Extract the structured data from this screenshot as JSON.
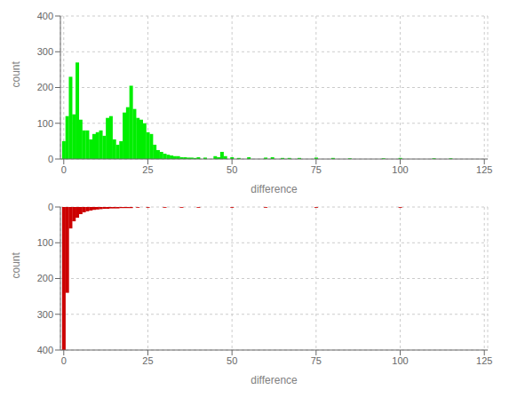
{
  "chart_data": [
    {
      "type": "bar",
      "xlabel": "difference",
      "ylabel": "count",
      "color": "#00EE00",
      "grid": true,
      "xlim": [
        -1,
        126
      ],
      "ylim": [
        0,
        400
      ],
      "xticks": [
        0,
        25,
        50,
        75,
        100,
        125
      ],
      "yticks": [
        0,
        100,
        200,
        300,
        400
      ],
      "x": [
        0,
        1,
        2,
        3,
        4,
        5,
        6,
        7,
        8,
        9,
        10,
        11,
        12,
        13,
        14,
        15,
        16,
        17,
        18,
        19,
        20,
        21,
        22,
        23,
        24,
        25,
        26,
        27,
        28,
        29,
        30,
        31,
        32,
        33,
        34,
        35,
        36,
        37,
        38,
        39,
        40,
        42,
        45,
        46,
        47,
        48,
        50,
        52,
        55,
        60,
        62,
        65,
        67,
        70,
        75,
        80,
        85,
        95,
        100,
        110,
        115
      ],
      "values": [
        50,
        120,
        230,
        125,
        270,
        110,
        80,
        80,
        55,
        70,
        75,
        80,
        65,
        115,
        120,
        55,
        40,
        50,
        130,
        145,
        205,
        140,
        115,
        110,
        100,
        75,
        70,
        40,
        25,
        20,
        15,
        12,
        10,
        8,
        8,
        5,
        5,
        4,
        4,
        3,
        5,
        4,
        8,
        5,
        20,
        8,
        5,
        3,
        5,
        4,
        5,
        3,
        3,
        3,
        4,
        3,
        2,
        2,
        3,
        2,
        2
      ]
    },
    {
      "type": "bar",
      "xlabel": "difference",
      "ylabel": "count",
      "color": "#CC0000",
      "grid": true,
      "xlim": [
        -1,
        126
      ],
      "ylim": [
        400,
        0
      ],
      "xticks": [
        0,
        25,
        50,
        75,
        100,
        125
      ],
      "yticks": [
        0,
        100,
        200,
        300,
        400
      ],
      "x": [
        0,
        1,
        2,
        3,
        4,
        5,
        6,
        7,
        8,
        9,
        10,
        11,
        12,
        13,
        14,
        15,
        16,
        17,
        18,
        19,
        20,
        22,
        25,
        30,
        35,
        40,
        50,
        60,
        75,
        100
      ],
      "values": [
        400,
        240,
        60,
        40,
        30,
        20,
        15,
        12,
        10,
        8,
        7,
        6,
        5,
        5,
        4,
        4,
        4,
        3,
        3,
        3,
        3,
        2,
        2,
        2,
        2,
        2,
        2,
        2,
        2,
        2
      ]
    }
  ]
}
